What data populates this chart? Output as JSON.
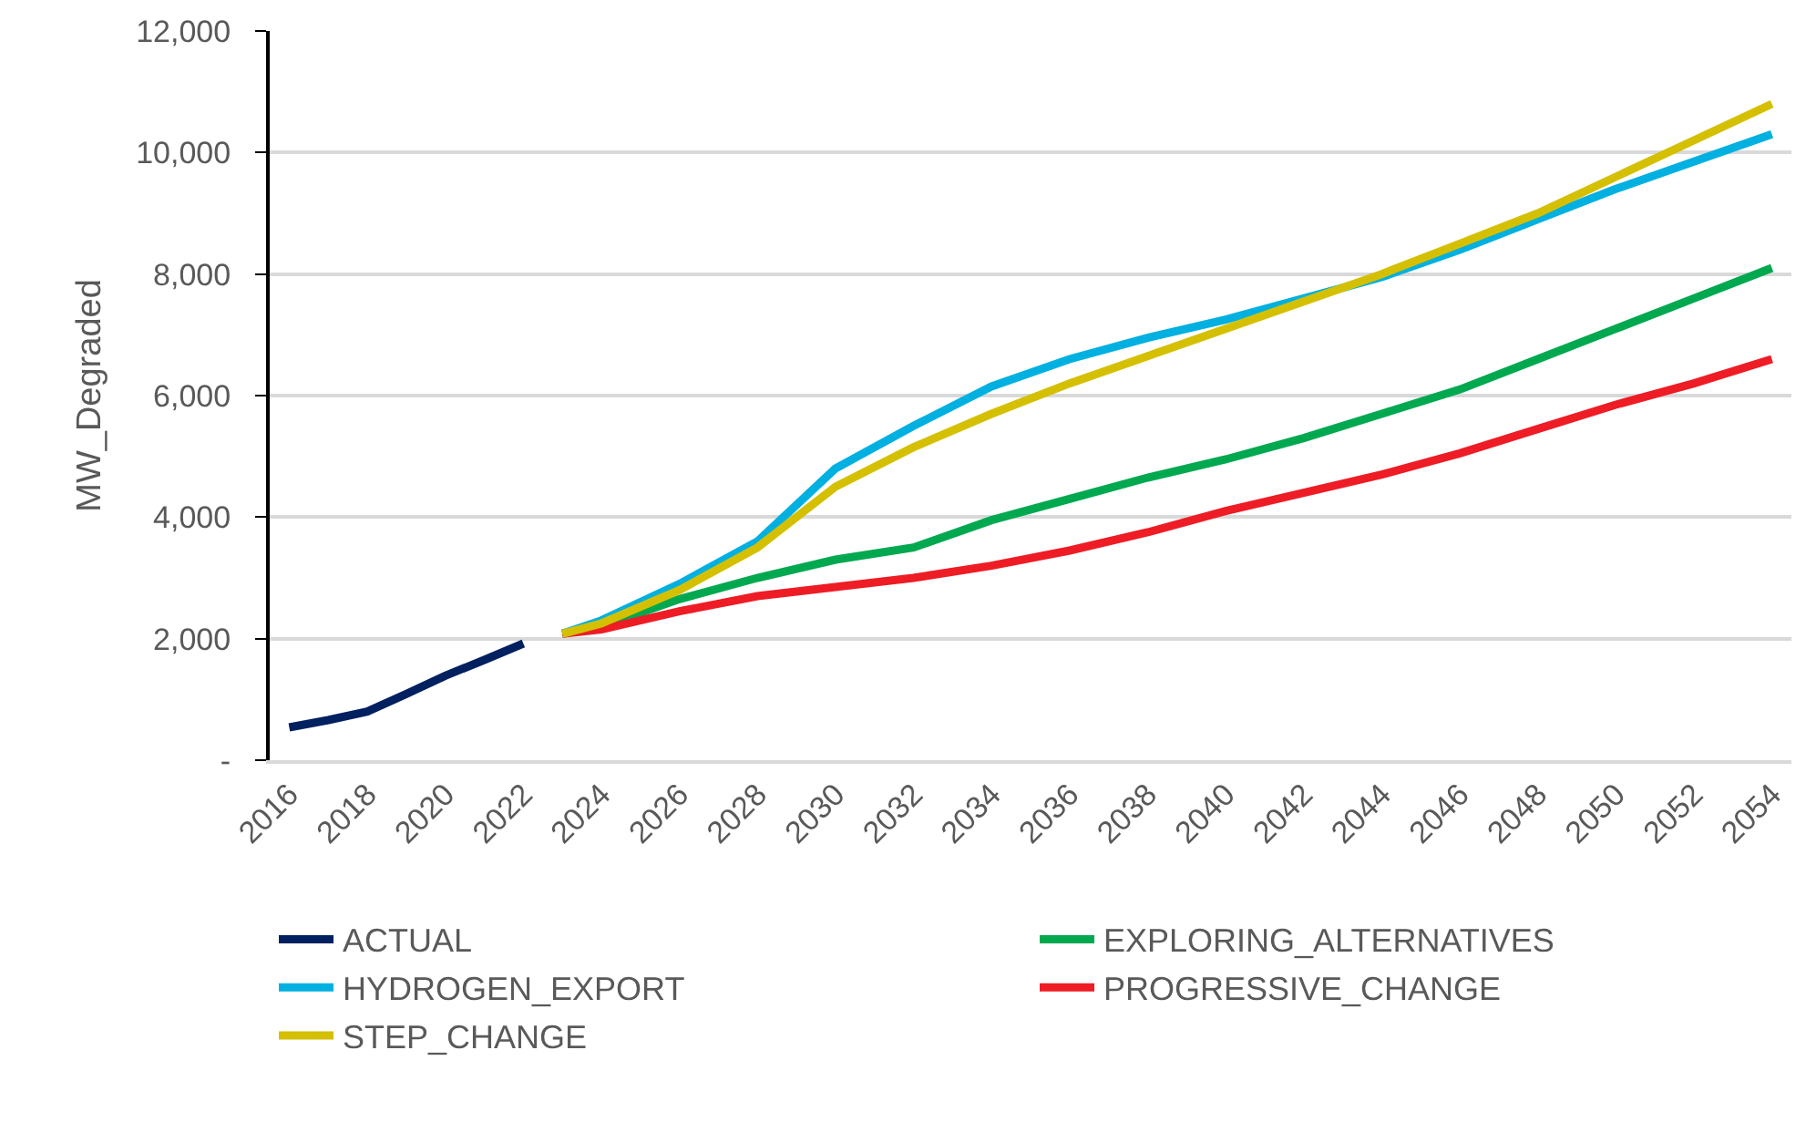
{
  "chart_data": {
    "type": "line",
    "ylabel": "MW_Degraded",
    "xlim": [
      2015.5,
      2054.5
    ],
    "xticks": [
      2016,
      2018,
      2020,
      2022,
      2024,
      2026,
      2028,
      2030,
      2032,
      2034,
      2036,
      2038,
      2040,
      2042,
      2044,
      2046,
      2048,
      2050,
      2052,
      2054
    ],
    "ylim": [
      0,
      12000
    ],
    "yticks": [
      {
        "value": 0,
        "label": "-"
      },
      {
        "value": 2000,
        "label": "2,000"
      },
      {
        "value": 4000,
        "label": "4,000"
      },
      {
        "value": 6000,
        "label": "6,000"
      },
      {
        "value": 8000,
        "label": "8,000"
      },
      {
        "value": 10000,
        "label": "10,000"
      },
      {
        "value": 12000,
        "label": "12,000"
      }
    ],
    "grid": "y",
    "legend": "bottom",
    "marker": "none",
    "line_style": "solid",
    "series": [
      {
        "name": "ACTUAL",
        "color": "#002060",
        "x": [
          2016,
          2017,
          2018,
          2019,
          2020,
          2021,
          2022
        ],
        "values": [
          540,
          660,
          800,
          1090,
          1390,
          1650,
          1920
        ]
      },
      {
        "name": "EXPLORING_ALTERNATIVES",
        "color": "#00a84f",
        "x": [
          2023,
          2024,
          2026,
          2028,
          2030,
          2032,
          2034,
          2036,
          2038,
          2040,
          2042,
          2044,
          2046,
          2048,
          2050,
          2052,
          2054
        ],
        "values": [
          2080,
          2200,
          2650,
          3000,
          3300,
          3500,
          3950,
          4300,
          4650,
          4950,
          5300,
          5700,
          6100,
          6600,
          7100,
          7600,
          8100
        ]
      },
      {
        "name": "HYDROGEN_EXPORT",
        "color": "#00b0e0",
        "x": [
          2023,
          2024,
          2026,
          2028,
          2030,
          2032,
          2034,
          2036,
          2038,
          2040,
          2042,
          2044,
          2046,
          2048,
          2050,
          2052,
          2054
        ],
        "values": [
          2080,
          2300,
          2900,
          3600,
          4800,
          5500,
          6150,
          6600,
          6950,
          7250,
          7600,
          7950,
          8400,
          8900,
          9400,
          9850,
          10300
        ]
      },
      {
        "name": "PROGRESSIVE_CHANGE",
        "color": "#ee1c25",
        "x": [
          2023,
          2024,
          2026,
          2028,
          2030,
          2032,
          2034,
          2036,
          2038,
          2040,
          2042,
          2044,
          2046,
          2048,
          2050,
          2052,
          2054
        ],
        "values": [
          2080,
          2150,
          2450,
          2700,
          2850,
          3000,
          3200,
          3450,
          3750,
          4100,
          4400,
          4700,
          5050,
          5450,
          5850,
          6200,
          6600
        ]
      },
      {
        "name": "STEP_CHANGE",
        "color": "#d4c000",
        "x": [
          2023,
          2024,
          2026,
          2028,
          2030,
          2032,
          2034,
          2036,
          2038,
          2040,
          2042,
          2044,
          2046,
          2048,
          2050,
          2052,
          2054
        ],
        "values": [
          2080,
          2250,
          2800,
          3500,
          4500,
          5150,
          5700,
          6200,
          6650,
          7100,
          7550,
          8000,
          8500,
          9000,
          9600,
          10200,
          10800
        ]
      }
    ]
  }
}
